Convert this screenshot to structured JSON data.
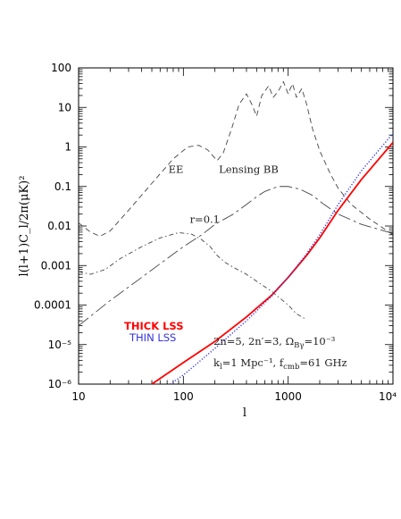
{
  "chart_data": {
    "type": "line",
    "xlabel": "l",
    "ylabel": "l(l+1)C_l/2π(μK)²",
    "xscale": "log",
    "yscale": "log",
    "xlim": [
      10,
      10000
    ],
    "ylim": [
      1e-06,
      100
    ],
    "x_ticks": [
      {
        "value": 10,
        "label": "10"
      },
      {
        "value": 100,
        "label": "100"
      },
      {
        "value": 1000,
        "label": "1000"
      },
      {
        "value": 10000,
        "label": "10⁴"
      }
    ],
    "y_ticks": [
      {
        "value": 100,
        "label": "100"
      },
      {
        "value": 10,
        "label": "10"
      },
      {
        "value": 1,
        "label": "1"
      },
      {
        "value": 0.1,
        "label": "0.1"
      },
      {
        "value": 0.01,
        "label": "0.01"
      },
      {
        "value": 0.001,
        "label": "0.001"
      },
      {
        "value": 0.0001,
        "label": "0.0001"
      },
      {
        "value": 1e-05,
        "label": "10⁻⁵"
      },
      {
        "value": 1e-06,
        "label": "10⁻⁶"
      }
    ],
    "series": [
      {
        "name": "EE",
        "color": "#444444",
        "dash": "6,4",
        "points": [
          [
            10,
            0.012
          ],
          [
            13,
            0.007
          ],
          [
            16,
            0.0055
          ],
          [
            20,
            0.0075
          ],
          [
            30,
            0.025
          ],
          [
            50,
            0.12
          ],
          [
            80,
            0.5
          ],
          [
            110,
            1.0
          ],
          [
            140,
            1.1
          ],
          [
            170,
            0.85
          ],
          [
            210,
            0.45
          ],
          [
            240,
            0.7
          ],
          [
            290,
            3
          ],
          [
            340,
            12
          ],
          [
            400,
            22
          ],
          [
            450,
            12
          ],
          [
            500,
            6
          ],
          [
            560,
            20
          ],
          [
            650,
            35
          ],
          [
            720,
            18
          ],
          [
            800,
            25
          ],
          [
            900,
            45
          ],
          [
            1000,
            22
          ],
          [
            1100,
            40
          ],
          [
            1200,
            18
          ],
          [
            1350,
            30
          ],
          [
            1500,
            12
          ],
          [
            1700,
            3
          ],
          [
            2000,
            0.8
          ],
          [
            2500,
            0.22
          ],
          [
            3000,
            0.09
          ],
          [
            4000,
            0.035
          ],
          [
            6000,
            0.015
          ],
          [
            10000,
            0.006
          ]
        ]
      },
      {
        "name": "Lensing BB",
        "color": "#444444",
        "dash": "14,4,3,4",
        "points": [
          [
            10,
            3e-05
          ],
          [
            20,
            0.00013
          ],
          [
            40,
            0.0005
          ],
          [
            70,
            0.0015
          ],
          [
            100,
            0.003
          ],
          [
            150,
            0.006
          ],
          [
            200,
            0.011
          ],
          [
            300,
            0.02
          ],
          [
            400,
            0.035
          ],
          [
            500,
            0.055
          ],
          [
            600,
            0.075
          ],
          [
            800,
            0.1
          ],
          [
            1000,
            0.1
          ],
          [
            1300,
            0.085
          ],
          [
            1700,
            0.06
          ],
          [
            2200,
            0.035
          ],
          [
            3000,
            0.02
          ],
          [
            5000,
            0.011
          ],
          [
            10000,
            0.0065
          ]
        ]
      },
      {
        "name": "r=0.1",
        "color": "#444444",
        "dash": "5,3,1.5,3",
        "points": [
          [
            10,
            0.0007
          ],
          [
            13,
            0.0006
          ],
          [
            18,
            0.0008
          ],
          [
            25,
            0.0015
          ],
          [
            40,
            0.003
          ],
          [
            60,
            0.005
          ],
          [
            90,
            0.0068
          ],
          [
            120,
            0.0062
          ],
          [
            150,
            0.0045
          ],
          [
            180,
            0.003
          ],
          [
            210,
            0.0018
          ],
          [
            250,
            0.0012
          ],
          [
            300,
            0.0009
          ],
          [
            400,
            0.0006
          ],
          [
            500,
            0.0004
          ],
          [
            700,
            0.00022
          ],
          [
            1000,
            0.0001
          ],
          [
            1200,
            6e-05
          ],
          [
            1450,
            4.5e-05
          ]
        ]
      },
      {
        "name": "THICK LSS",
        "color": "#ff0000",
        "dash": "",
        "width": 1.8,
        "points": [
          [
            50,
            1e-06
          ],
          [
            100,
            3.5e-06
          ],
          [
            200,
            1.2e-05
          ],
          [
            400,
            5e-05
          ],
          [
            700,
            0.00018
          ],
          [
            1000,
            0.0005
          ],
          [
            1500,
            0.0018
          ],
          [
            2000,
            0.005
          ],
          [
            3000,
            0.025
          ],
          [
            5000,
            0.15
          ],
          [
            10000,
            1.3
          ]
        ]
      },
      {
        "name": "THIN LSS",
        "color": "#3333dd",
        "dash": "1.2,2",
        "width": 1.4,
        "points": [
          [
            75,
            1e-06
          ],
          [
            100,
            1.7e-06
          ],
          [
            200,
            8e-06
          ],
          [
            400,
            4e-05
          ],
          [
            700,
            0.00017
          ],
          [
            1000,
            0.0005
          ],
          [
            1500,
            0.002
          ],
          [
            2000,
            0.006
          ],
          [
            3000,
            0.035
          ],
          [
            5000,
            0.25
          ],
          [
            10000,
            2.2
          ]
        ]
      }
    ],
    "curve_labels": [
      {
        "text": "EE",
        "x": 85,
        "y": 0.22
      },
      {
        "text": "Lensing BB",
        "x": 420,
        "y": 0.22
      },
      {
        "text": "r=0.1",
        "x": 160,
        "y": 0.012
      }
    ],
    "legend": {
      "thick": "THICK LSS",
      "thin": "THIN LSS"
    },
    "annotations": {
      "line1": "2n=5, 2n′=3, Ω",
      "line1_sub": "Bγ",
      "line1_end": "=10⁻³",
      "line2_a": "k",
      "line2_sub_a": "l",
      "line2_b": "=1 Mpc⁻¹, f",
      "line2_sub_b": "cmb",
      "line2_c": "=61 GHz"
    }
  }
}
